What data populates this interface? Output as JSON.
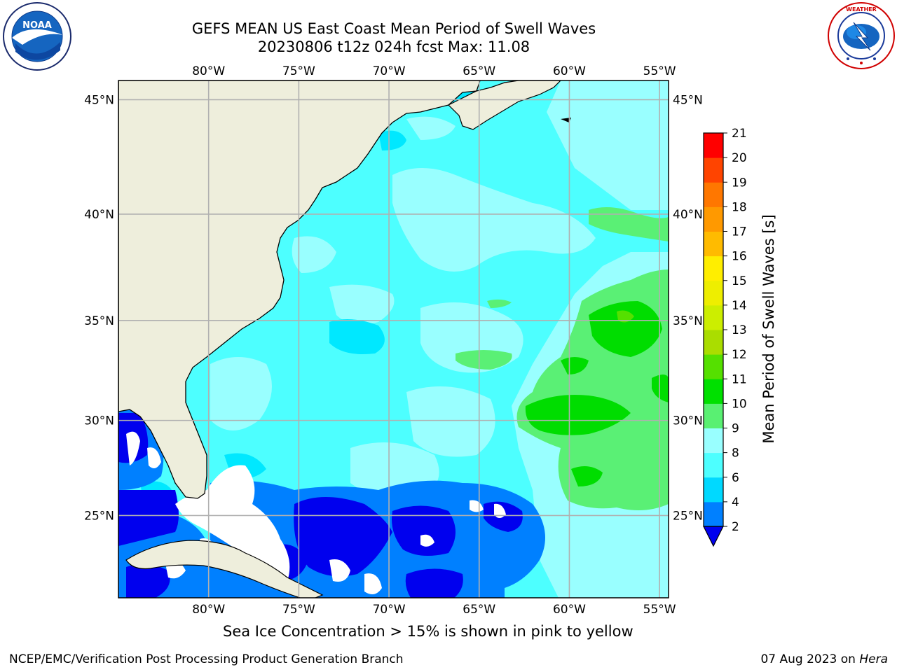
{
  "header": {
    "title_line1": "GEFS MEAN US East Coast Mean Period of Swell Waves",
    "title_line2": "20230806 t12z 024h fcst   Max: 11.08"
  },
  "logos": {
    "left": {
      "icon": "noaa-logo-icon",
      "text": "NOAA",
      "ring_text": "NATIONAL OCEANIC AND ATMOSPHERIC ADMINISTRATION · U.S. DEPARTMENT OF COMMERCE"
    },
    "right": {
      "icon": "nws-logo-icon",
      "ring_text": "NATIONAL WEATHER SERVICE"
    }
  },
  "map": {
    "lon_labels": [
      "80°W",
      "75°W",
      "70°W",
      "65°W",
      "60°W",
      "55°W"
    ],
    "lat_labels": [
      "45°N",
      "40°N",
      "35°N",
      "30°N",
      "25°N"
    ],
    "lon_range": [
      -85,
      -54.5
    ],
    "lat_range": [
      20.5,
      45.8
    ],
    "colors": {
      "land": "#eeeedc",
      "ocean_base": "#4dffff",
      "frame": "#000000",
      "grid": "#b0b0b0"
    }
  },
  "colorbar": {
    "label": "Mean Period of Swell Waves [s]",
    "ticks": [
      "2",
      "4",
      "6",
      "8",
      "9",
      "10",
      "11",
      "12",
      "13",
      "14",
      "15",
      "16",
      "17",
      "18",
      "19",
      "20",
      "21"
    ],
    "bins": [
      {
        "from": "2",
        "to": "4",
        "color": "#0080ff"
      },
      {
        "from": "4",
        "to": "6",
        "color": "#00d9ff"
      },
      {
        "from": "6",
        "to": "8",
        "color": "#4dffff"
      },
      {
        "from": "8",
        "to": "9",
        "color": "#99ffff"
      },
      {
        "from": "9",
        "to": "10",
        "color": "#59f072"
      },
      {
        "from": "10",
        "to": "11",
        "color": "#00e000"
      },
      {
        "from": "11",
        "to": "12",
        "color": "#55e000"
      },
      {
        "from": "12",
        "to": "13",
        "color": "#aadd00"
      },
      {
        "from": "13",
        "to": "14",
        "color": "#ccee00"
      },
      {
        "from": "14",
        "to": "15",
        "color": "#eeee00"
      },
      {
        "from": "15",
        "to": "16",
        "color": "#ffee00"
      },
      {
        "from": "16",
        "to": "17",
        "color": "#ffbb00"
      },
      {
        "from": "17",
        "to": "18",
        "color": "#ff9900"
      },
      {
        "from": "18",
        "to": "19",
        "color": "#ff7700"
      },
      {
        "from": "19",
        "to": "20",
        "color": "#ff4400"
      },
      {
        "from": "20",
        "to": "21",
        "color": "#ff0000"
      }
    ],
    "under_color": "#0000ee"
  },
  "caption": "Sea Ice Concentration > 15% is shown in pink to yellow",
  "footer": {
    "left": "NCEP/EMC/Verification Post Processing Product Generation Branch",
    "date": "07 Aug 2023 on ",
    "machine": "Hera"
  }
}
